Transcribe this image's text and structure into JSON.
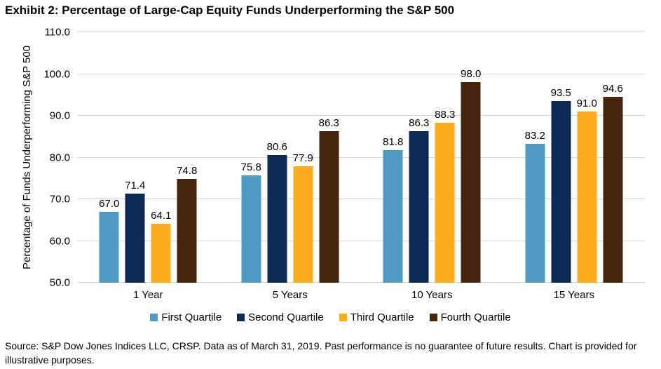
{
  "title": "Exhibit 2: Percentage of Large-Cap Equity Funds Underperforming the S&P 500",
  "chart_data": {
    "type": "bar",
    "categories": [
      "1 Year",
      "5 Years",
      "10 Years",
      "15 Years"
    ],
    "series": [
      {
        "name": "First Quartile",
        "color": "#4F9AC3",
        "values": [
          67.0,
          75.8,
          81.8,
          83.2
        ]
      },
      {
        "name": "Second Quartile",
        "color": "#0D2B53",
        "values": [
          71.4,
          80.6,
          86.3,
          93.5
        ]
      },
      {
        "name": "Third Quartile",
        "color": "#FFAC1C",
        "values": [
          64.1,
          77.9,
          88.3,
          91.0
        ]
      },
      {
        "name": "Fourth Quartile",
        "color": "#46250E",
        "values": [
          74.8,
          86.3,
          98.0,
          94.6
        ]
      }
    ],
    "xlabel": "",
    "ylabel": "Percentage of Funds Underperforming S&P 500",
    "ylim": [
      50,
      110
    ],
    "ytick_step": 10,
    "ytick_decimals": 1,
    "data_label_decimals": 1,
    "grid": true,
    "legend_position": "bottom",
    "gridline_color": "#D9D9D9"
  },
  "source_note": "Source: S&P Dow Jones Indices LLC, CRSP. Data as of March 31, 2019. Past performance is no guarantee of future results. Chart is provided for illustrative purposes."
}
